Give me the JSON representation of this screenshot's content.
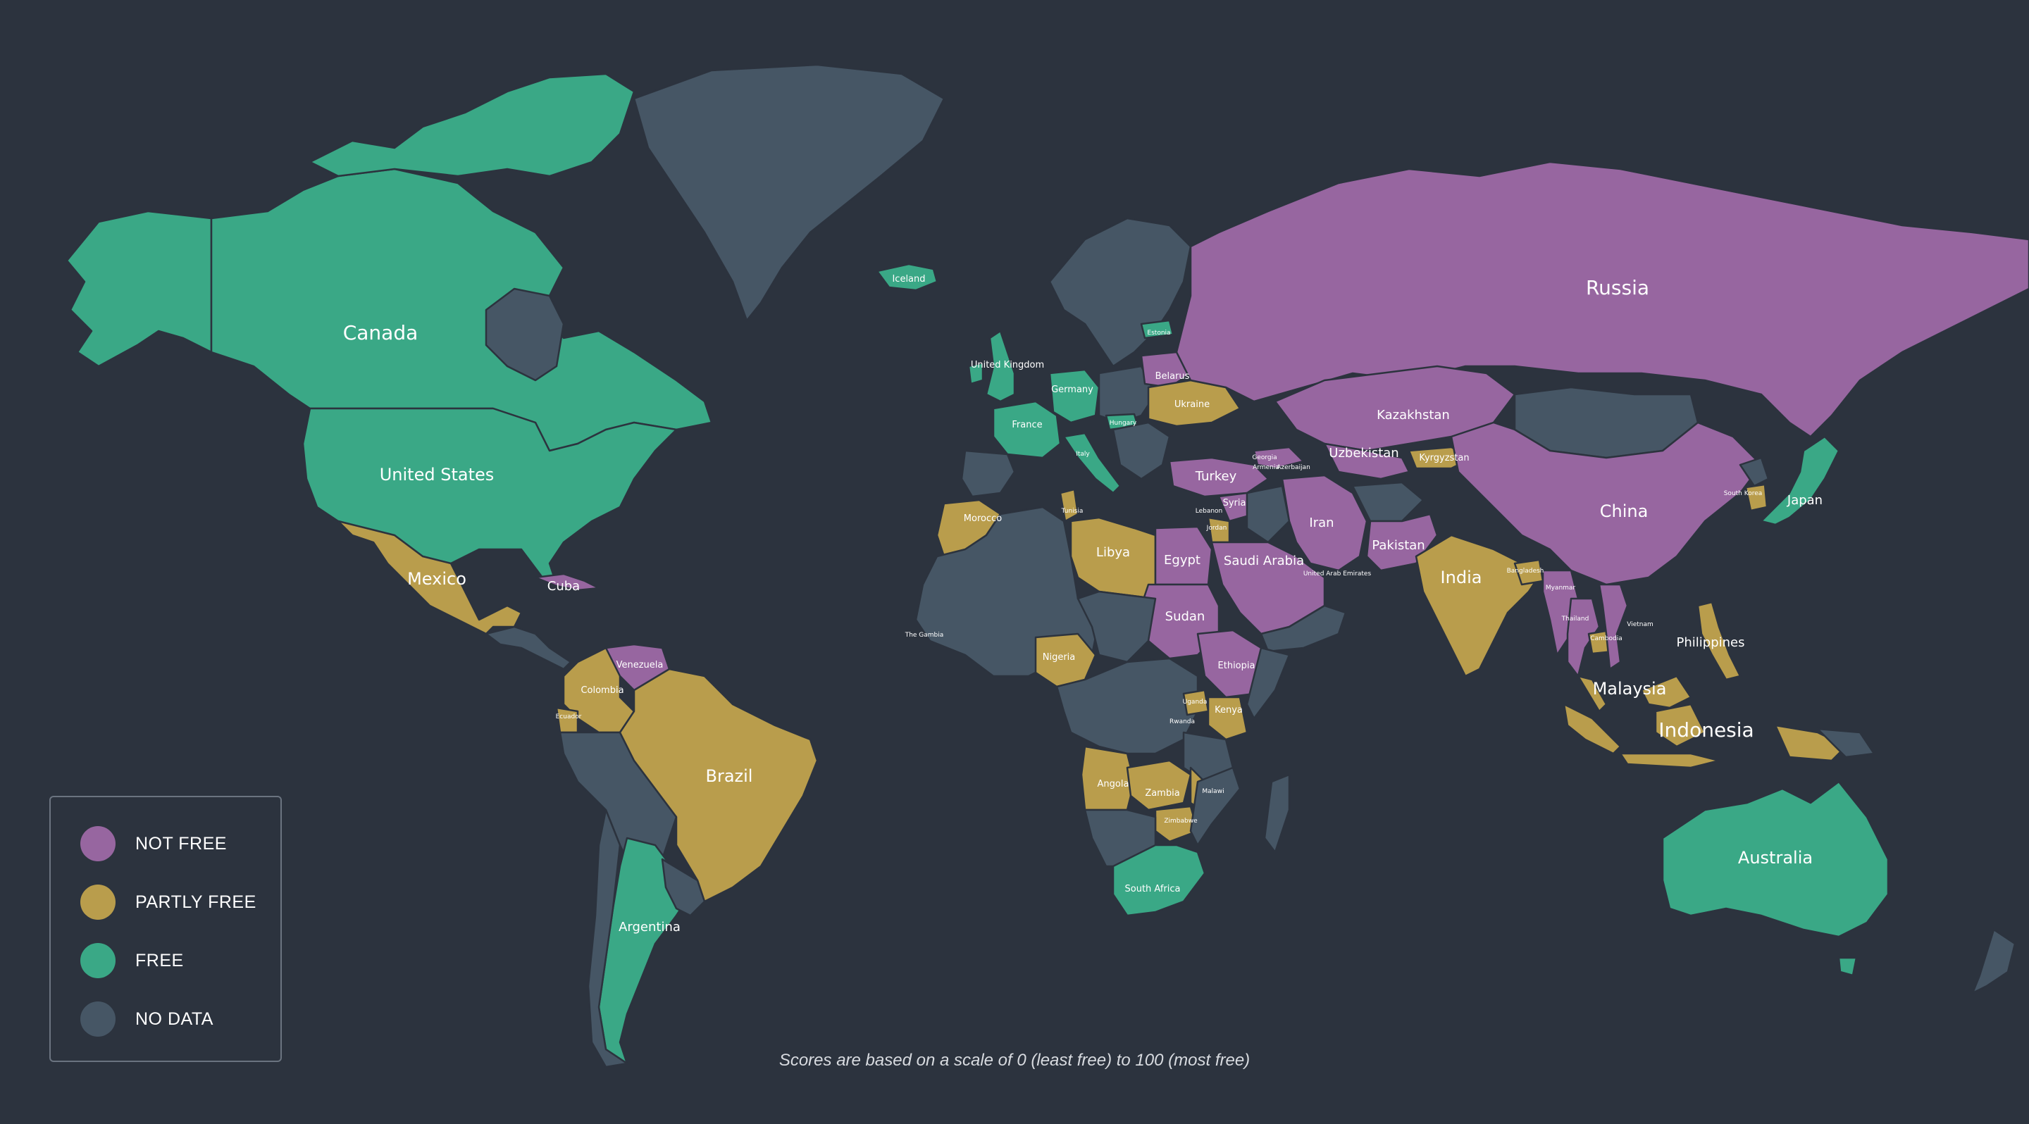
{
  "legend": {
    "items": [
      {
        "label": "NOT FREE",
        "color": "#9766a0"
      },
      {
        "label": "PARTLY FREE",
        "color": "#b99d4c"
      },
      {
        "label": "FREE",
        "color": "#3aa886"
      },
      {
        "label": "NO DATA",
        "color": "#465665"
      }
    ]
  },
  "footnote": "Scores are based on a scale of 0 (least free) to 100 (most free)",
  "countries": {
    "canada": "Canada",
    "united_states": "United States",
    "mexico": "Mexico",
    "cuba": "Cuba",
    "venezuela": "Venezuela",
    "colombia": "Colombia",
    "ecuador": "Ecuador",
    "brazil": "Brazil",
    "argentina": "Argentina",
    "iceland": "Iceland",
    "estonia": "Estonia",
    "united_kingdom": "United Kingdom",
    "germany": "Germany",
    "belarus": "Belarus",
    "ukraine": "Ukraine",
    "france": "France",
    "hungary": "Hungary",
    "italy": "Italy",
    "georgia": "Georgia",
    "armenia": "Armenia",
    "azerbaijan": "Azerbaijan",
    "turkey": "Turkey",
    "syria": "Syria",
    "lebanon": "Lebanon",
    "jordan": "Jordan",
    "morocco": "Morocco",
    "tunisia": "Tunisia",
    "libya": "Libya",
    "egypt": "Egypt",
    "saudi_arabia": "Saudi Arabia",
    "uae": "United Arab Emirates",
    "sudan": "Sudan",
    "ethiopia": "Ethiopia",
    "gambia": "The Gambia",
    "nigeria": "Nigeria",
    "uganda": "Uganda",
    "rwanda": "Rwanda",
    "kenya": "Kenya",
    "angola": "Angola",
    "zambia": "Zambia",
    "malawi": "Malawi",
    "zimbabwe": "Zimbabwe",
    "south_africa": "South Africa",
    "russia": "Russia",
    "kazakhstan": "Kazakhstan",
    "uzbekistan": "Uzbekistan",
    "kyrgyzstan": "Kyrgyzstan",
    "iran": "Iran",
    "pakistan": "Pakistan",
    "india": "India",
    "bangladesh": "Bangladesh",
    "myanmar": "Myanmar",
    "china": "China",
    "south_korea": "South Korea",
    "japan": "Japan",
    "thailand": "Thailand",
    "vietnam": "Vietnam",
    "cambodia": "Cambodia",
    "philippines": "Philippines",
    "malaysia": "Malaysia",
    "indonesia": "Indonesia",
    "australia": "Australia"
  }
}
